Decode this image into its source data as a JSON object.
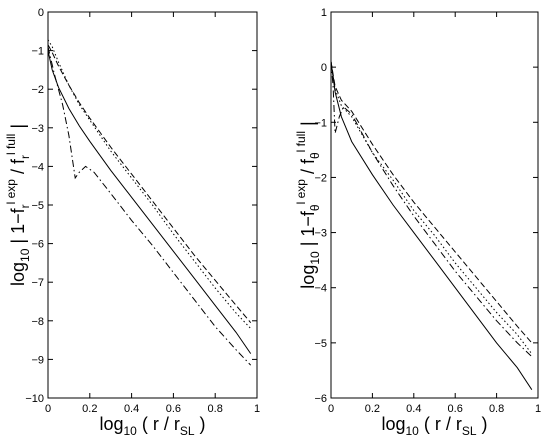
{
  "chart_data": [
    {
      "type": "line",
      "panel": "left",
      "xlabel": {
        "pre": "log",
        "pre_sub": "10",
        "mid": " ( r / r",
        "mid_sub": "SL",
        "post": " )"
      },
      "ylabel": {
        "pre": "log",
        "pre_sub": "10",
        "a": " | 1−f",
        "a_sub": "r",
        "a_sup": "l exp",
        "b": " / f",
        "b_sub": "r",
        "b_sup": "l full",
        "post": " |"
      },
      "xlim": [
        0,
        1
      ],
      "ylim": [
        -10,
        0
      ],
      "xticks": [
        "0",
        "0.2",
        "0.4",
        "0.6",
        "0.8",
        "1"
      ],
      "yticks": [
        "0",
        "−1",
        "−2",
        "−3",
        "−4",
        "−5",
        "−6",
        "−7",
        "−8",
        "−9",
        "−10"
      ],
      "xtick_values": [
        0,
        0.2,
        0.4,
        0.6,
        0.8,
        1
      ],
      "ytick_values": [
        0,
        -1,
        -2,
        -3,
        -4,
        -5,
        -6,
        -7,
        -8,
        -9,
        -10
      ],
      "grid": false,
      "series": [
        {
          "style": "solid",
          "x": [
            0,
            0.02,
            0.05,
            0.1,
            0.15,
            0.2,
            0.3,
            0.4,
            0.5,
            0.6,
            0.7,
            0.8,
            0.9,
            0.97
          ],
          "y": [
            -1.0,
            -1.5,
            -1.95,
            -2.5,
            -2.95,
            -3.35,
            -4.1,
            -4.8,
            -5.5,
            -6.2,
            -6.9,
            -7.6,
            -8.3,
            -8.85
          ]
        },
        {
          "style": "dashed",
          "x": [
            0,
            0.02,
            0.05,
            0.1,
            0.15,
            0.2,
            0.3,
            0.4,
            0.5,
            0.6,
            0.7,
            0.8,
            0.9,
            0.97
          ],
          "y": [
            -0.85,
            -1.05,
            -1.4,
            -1.9,
            -2.35,
            -2.75,
            -3.5,
            -4.2,
            -4.9,
            -5.6,
            -6.3,
            -6.95,
            -7.6,
            -8.05
          ]
        },
        {
          "style": "dotted",
          "x": [
            0,
            0.02,
            0.05,
            0.1,
            0.15,
            0.2,
            0.3,
            0.4,
            0.5,
            0.6,
            0.7,
            0.8,
            0.9,
            0.97
          ],
          "y": [
            -0.72,
            -0.9,
            -1.3,
            -1.9,
            -2.4,
            -2.8,
            -3.6,
            -4.3,
            -5.0,
            -5.75,
            -6.45,
            -7.15,
            -7.8,
            -8.2
          ]
        },
        {
          "style": "dashdot",
          "x": [
            0,
            0.03,
            0.07,
            0.1,
            0.13,
            0.15,
            0.18,
            0.22,
            0.3,
            0.4,
            0.5,
            0.6,
            0.7,
            0.8,
            0.9,
            0.97
          ],
          "y": [
            -0.9,
            -1.6,
            -2.4,
            -3.2,
            -4.3,
            -4.15,
            -4.0,
            -4.15,
            -4.7,
            -5.4,
            -6.05,
            -6.75,
            -7.45,
            -8.15,
            -8.75,
            -9.15
          ]
        }
      ]
    },
    {
      "type": "line",
      "panel": "right",
      "xlabel": {
        "pre": "log",
        "pre_sub": "10",
        "mid": " ( r / r",
        "mid_sub": "SL",
        "post": " )"
      },
      "ylabel": {
        "pre": "log",
        "pre_sub": "10",
        "a": " | 1−f",
        "a_sub": "θ",
        "a_sup": "l exp",
        "b": " / f",
        "b_sub": "θ",
        "b_sup": "l full",
        "post": " |"
      },
      "xlim": [
        0,
        1
      ],
      "ylim": [
        -6,
        1
      ],
      "xticks": [
        "0",
        "0.2",
        "0.4",
        "0.6",
        "0.8",
        "1"
      ],
      "yticks": [
        "1",
        "0",
        "−1",
        "−2",
        "−3",
        "−4",
        "−5",
        "−6"
      ],
      "xtick_values": [
        0,
        0.2,
        0.4,
        0.6,
        0.8,
        1
      ],
      "ytick_values": [
        1,
        0,
        -1,
        -2,
        -3,
        -4,
        -5,
        -6
      ],
      "grid": false,
      "series": [
        {
          "style": "solid",
          "x": [
            0,
            0.02,
            0.05,
            0.1,
            0.2,
            0.3,
            0.4,
            0.5,
            0.6,
            0.7,
            0.8,
            0.9,
            0.97
          ],
          "y": [
            0.1,
            -0.45,
            -0.9,
            -1.35,
            -1.95,
            -2.5,
            -3.0,
            -3.5,
            -4.0,
            -4.5,
            -5.0,
            -5.45,
            -5.85
          ]
        },
        {
          "style": "dashed",
          "x": [
            0,
            0.02,
            0.05,
            0.1,
            0.2,
            0.3,
            0.4,
            0.5,
            0.6,
            0.7,
            0.8,
            0.9,
            0.97
          ],
          "y": [
            0.1,
            -0.35,
            -0.6,
            -0.8,
            -1.4,
            -1.95,
            -2.45,
            -2.9,
            -3.35,
            -3.8,
            -4.25,
            -4.7,
            -5.0
          ]
        },
        {
          "style": "dotted",
          "x": [
            0,
            0.02,
            0.05,
            0.1,
            0.2,
            0.3,
            0.4,
            0.5,
            0.6,
            0.7,
            0.8,
            0.9,
            0.97
          ],
          "y": [
            0.1,
            -0.4,
            -0.7,
            -0.9,
            -1.55,
            -2.05,
            -2.6,
            -3.05,
            -3.55,
            -4.0,
            -4.45,
            -4.85,
            -5.2
          ]
        },
        {
          "style": "dashdot",
          "x": [
            0,
            0.01,
            0.02,
            0.04,
            0.06,
            0.1,
            0.2,
            0.3,
            0.4,
            0.5,
            0.6,
            0.7,
            0.8,
            0.9,
            0.97
          ],
          "y": [
            0.1,
            -0.35,
            -1.2,
            -0.9,
            -0.72,
            -0.85,
            -1.55,
            -2.15,
            -2.7,
            -3.2,
            -3.7,
            -4.15,
            -4.6,
            -5.0,
            -5.25
          ]
        }
      ]
    }
  ]
}
